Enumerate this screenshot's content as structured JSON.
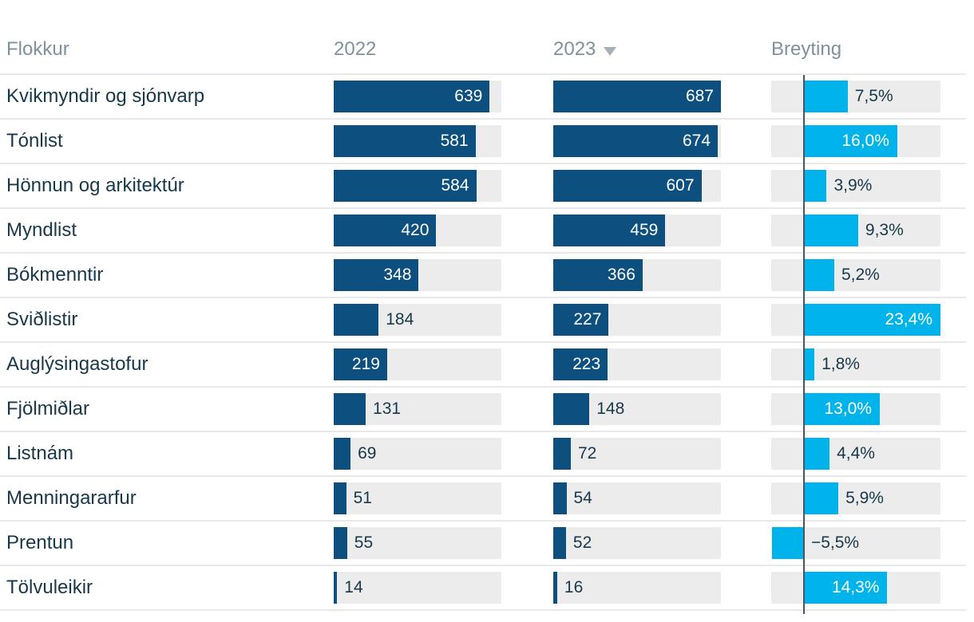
{
  "header": {
    "category": "Flokkur",
    "col2022": "2022",
    "col2023": "2023",
    "sort_icon": "triangle-down",
    "change": "Breyting"
  },
  "colors": {
    "bar_dark": "#0d5080",
    "bar_light": "#00b3ea",
    "track": "#ececec",
    "label_dark": "#17384a",
    "label_light": "#ffffff",
    "header_text": "#7e929d",
    "zero_line": "#4a545b",
    "separator": "#e9e9e9"
  },
  "rows": [
    {
      "label": "Kvikmyndir og sjónvarp",
      "v2022": 639,
      "v2023": 687,
      "change": 7.5,
      "change_label": "7,5%"
    },
    {
      "label": "Tónlist",
      "v2022": 581,
      "v2023": 674,
      "change": 16.0,
      "change_label": "16,0%"
    },
    {
      "label": "Hönnun og arkitektúr",
      "v2022": 584,
      "v2023": 607,
      "change": 3.9,
      "change_label": "3,9%"
    },
    {
      "label": "Myndlist",
      "v2022": 420,
      "v2023": 459,
      "change": 9.3,
      "change_label": "9,3%"
    },
    {
      "label": "Bókmenntir",
      "v2022": 348,
      "v2023": 366,
      "change": 5.2,
      "change_label": "5,2%"
    },
    {
      "label": "Sviðlistir",
      "v2022": 184,
      "v2023": 227,
      "change": 23.4,
      "change_label": "23,4%"
    },
    {
      "label": "Auglýsingastofur",
      "v2022": 219,
      "v2023": 223,
      "change": 1.8,
      "change_label": "1,8%"
    },
    {
      "label": "Fjölmiðlar",
      "v2022": 131,
      "v2023": 148,
      "change": 13.0,
      "change_label": "13,0%"
    },
    {
      "label": "Listnám",
      "v2022": 69,
      "v2023": 72,
      "change": 4.4,
      "change_label": "4,4%"
    },
    {
      "label": "Menningararfur",
      "v2022": 51,
      "v2023": 54,
      "change": 5.9,
      "change_label": "5,9%"
    },
    {
      "label": "Prentun",
      "v2022": 55,
      "v2023": 52,
      "change": -5.5,
      "change_label": "−5,5%"
    },
    {
      "label": "Tölvuleikir",
      "v2022": 14,
      "v2023": 16,
      "change": 14.3,
      "change_label": "14,3%"
    }
  ],
  "chart_data": {
    "type": "bar",
    "orientation": "horizontal",
    "title": "",
    "categories": [
      "Kvikmyndir og sjónvarp",
      "Tónlist",
      "Hönnun og arkitektúr",
      "Myndlist",
      "Bókmenntir",
      "Sviðlistir",
      "Auglýsingastofur",
      "Fjölmiðlar",
      "Listnám",
      "Menningararfur",
      "Prentun",
      "Tölvuleikir"
    ],
    "series": [
      {
        "name": "2022",
        "values": [
          639,
          581,
          584,
          420,
          348,
          184,
          219,
          131,
          69,
          51,
          55,
          14
        ]
      },
      {
        "name": "2023",
        "values": [
          687,
          674,
          607,
          459,
          366,
          227,
          223,
          148,
          72,
          54,
          52,
          16
        ]
      },
      {
        "name": "Breyting",
        "values": [
          7.5,
          16.0,
          3.9,
          9.3,
          5.2,
          23.4,
          1.8,
          13.0,
          4.4,
          5.9,
          -5.5,
          14.3
        ],
        "unit": "%"
      }
    ],
    "value_axis_max": 687,
    "change_axis": {
      "min": -5.6,
      "max": 23.4
    },
    "sorted_by": "2023",
    "sort_direction": "descending",
    "grid": false,
    "legend": "none"
  }
}
